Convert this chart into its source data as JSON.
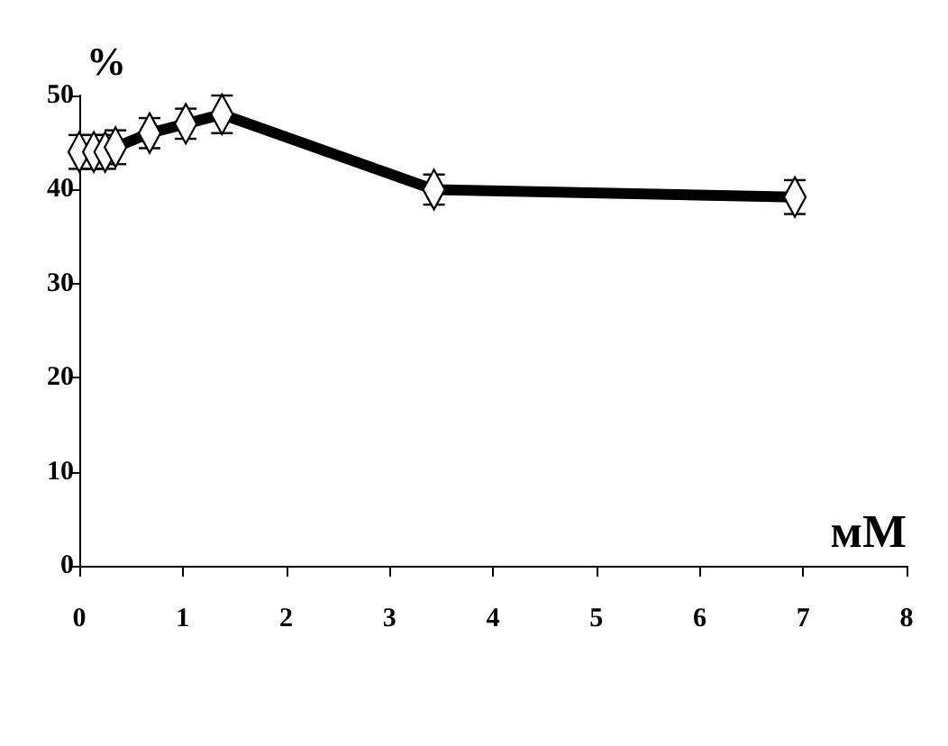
{
  "chart_data": {
    "type": "line",
    "ylabel": "%",
    "xlabel": "мМ",
    "x": [
      0,
      0.14,
      0.25,
      0.35,
      0.68,
      1.03,
      1.38,
      3.43,
      6.92
    ],
    "series": [
      {
        "color": "#000000",
        "values": [
          44,
          44,
          44,
          44.5,
          46,
          47,
          48,
          40,
          39.2
        ],
        "errors": [
          1.8,
          1.8,
          1.8,
          1.8,
          1.6,
          1.6,
          2,
          1.6,
          1.8
        ]
      }
    ],
    "xlim": [
      0,
      8
    ],
    "xticks": [
      0,
      1,
      2,
      3,
      4,
      5,
      6,
      7,
      8
    ],
    "ylim": [
      0,
      50
    ],
    "yticks": [
      0,
      10,
      20,
      30,
      40,
      50
    ],
    "marker": "diamond",
    "line_style": "solid"
  }
}
